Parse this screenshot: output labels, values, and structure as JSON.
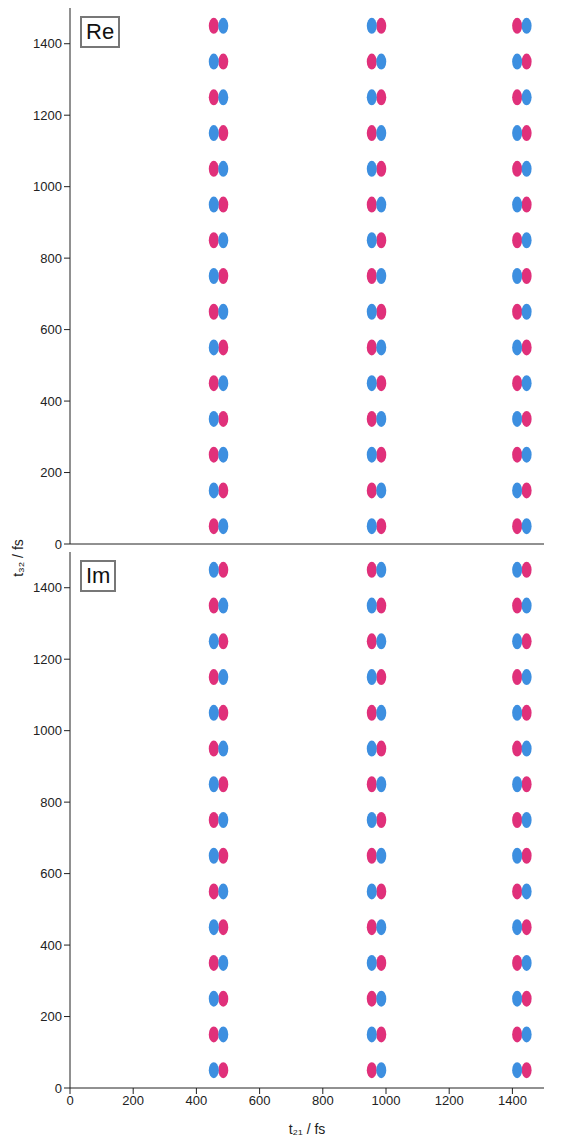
{
  "chart_data": [
    {
      "type": "scatter",
      "title": "Re",
      "ylabel": "t₃₂ / fs",
      "xlim": [
        0,
        1500
      ],
      "ylim": [
        0,
        1500
      ],
      "xticks": [
        0,
        200,
        400,
        600,
        800,
        1000,
        1200,
        1400
      ],
      "yticks": [
        0,
        200,
        400,
        600,
        800,
        1000,
        1200,
        1400
      ],
      "tick_labels": "y",
      "marker": "ellipse",
      "series": [
        {
          "color": "#e0307a",
          "x": [
            455,
            455,
            455,
            455,
            455,
            455,
            455,
            455,
            485,
            485,
            485,
            485,
            485,
            485,
            485,
            955,
            955,
            955,
            955,
            955,
            955,
            955,
            985,
            985,
            985,
            985,
            985,
            985,
            985,
            985,
            1415,
            1415,
            1415,
            1415,
            1415,
            1415,
            1415,
            1415,
            1445,
            1445,
            1445,
            1445,
            1445,
            1445,
            1445
          ],
          "y": [
            50,
            250,
            450,
            650,
            850,
            1050,
            1250,
            1450,
            150,
            350,
            550,
            750,
            950,
            1150,
            1350,
            150,
            350,
            550,
            750,
            950,
            1150,
            1350,
            50,
            250,
            450,
            650,
            850,
            1050,
            1250,
            1450,
            50,
            250,
            450,
            650,
            850,
            1050,
            1250,
            1450,
            150,
            350,
            550,
            750,
            950,
            1150,
            1350
          ]
        },
        {
          "color": "#3d8fe0",
          "x": [
            455,
            455,
            455,
            455,
            455,
            455,
            455,
            485,
            485,
            485,
            485,
            485,
            485,
            485,
            485,
            955,
            955,
            955,
            955,
            955,
            955,
            955,
            955,
            985,
            985,
            985,
            985,
            985,
            985,
            985,
            1415,
            1415,
            1415,
            1415,
            1415,
            1415,
            1415,
            1445,
            1445,
            1445,
            1445,
            1445,
            1445,
            1445,
            1445
          ],
          "y": [
            150,
            350,
            550,
            750,
            950,
            1150,
            1350,
            50,
            250,
            450,
            650,
            850,
            1050,
            1250,
            1450,
            50,
            250,
            450,
            650,
            850,
            1050,
            1250,
            1450,
            150,
            350,
            550,
            750,
            950,
            1150,
            1350,
            150,
            350,
            550,
            750,
            950,
            1150,
            1350,
            50,
            250,
            450,
            650,
            850,
            1050,
            1250,
            1450
          ]
        }
      ]
    },
    {
      "type": "scatter",
      "title": "Im",
      "xlabel": "t₂₁ / fs",
      "xlim": [
        0,
        1500
      ],
      "ylim": [
        0,
        1500
      ],
      "xticks": [
        0,
        200,
        400,
        600,
        800,
        1000,
        1200,
        1400
      ],
      "yticks": [
        0,
        200,
        400,
        600,
        800,
        1000,
        1200,
        1400
      ],
      "marker": "ellipse",
      "series": [
        {
          "color": "#e0307a",
          "x": [
            455,
            455,
            455,
            455,
            455,
            455,
            455,
            485,
            485,
            485,
            485,
            485,
            485,
            485,
            485,
            955,
            955,
            955,
            955,
            955,
            955,
            955,
            955,
            985,
            985,
            985,
            985,
            985,
            985,
            985,
            1415,
            1415,
            1415,
            1415,
            1415,
            1415,
            1415,
            1445,
            1445,
            1445,
            1445,
            1445,
            1445,
            1445,
            1445
          ],
          "y": [
            150,
            350,
            550,
            750,
            950,
            1150,
            1350,
            50,
            250,
            450,
            650,
            850,
            1050,
            1250,
            1450,
            50,
            250,
            450,
            650,
            850,
            1050,
            1250,
            1450,
            150,
            350,
            550,
            750,
            950,
            1150,
            1350,
            150,
            350,
            550,
            750,
            950,
            1150,
            1350,
            50,
            250,
            450,
            650,
            850,
            1050,
            1250,
            1450
          ]
        },
        {
          "color": "#3d8fe0",
          "x": [
            455,
            455,
            455,
            455,
            455,
            455,
            455,
            455,
            485,
            485,
            485,
            485,
            485,
            485,
            485,
            955,
            955,
            955,
            955,
            955,
            955,
            955,
            985,
            985,
            985,
            985,
            985,
            985,
            985,
            985,
            1415,
            1415,
            1415,
            1415,
            1415,
            1415,
            1415,
            1415,
            1445,
            1445,
            1445,
            1445,
            1445,
            1445,
            1445
          ],
          "y": [
            50,
            250,
            450,
            650,
            850,
            1050,
            1250,
            1450,
            150,
            350,
            550,
            750,
            950,
            1150,
            1350,
            150,
            350,
            550,
            750,
            950,
            1150,
            1350,
            50,
            250,
            450,
            650,
            850,
            1050,
            1250,
            1450,
            50,
            250,
            450,
            650,
            850,
            1050,
            1250,
            1450,
            150,
            350,
            550,
            750,
            950,
            1150,
            1350
          ]
        }
      ]
    }
  ]
}
